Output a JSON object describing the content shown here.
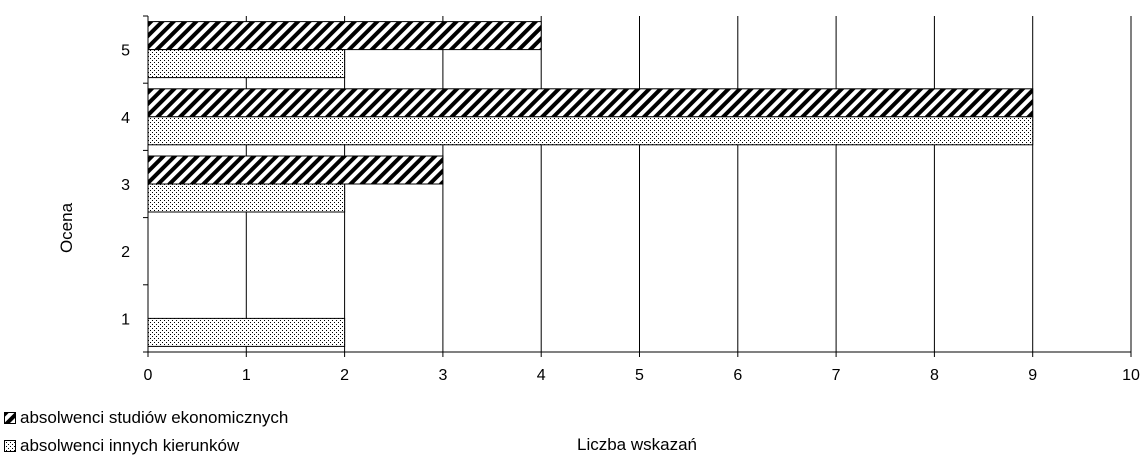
{
  "chart_data": {
    "type": "bar",
    "orientation": "horizontal",
    "categories": [
      "1",
      "2",
      "3",
      "4",
      "5"
    ],
    "series": [
      {
        "name": "absolwenci studiów ekonomicznych",
        "values": [
          0,
          0,
          3,
          9,
          4
        ],
        "pattern": "diagonal-hatch",
        "color": "#000000"
      },
      {
        "name": "absolwenci innych kierunków",
        "values": [
          2,
          0,
          2,
          9,
          2
        ],
        "pattern": "dotted",
        "color": "#000000"
      }
    ],
    "xlabel": "Liczba wskazań",
    "ylabel": "Ocena",
    "xlim": [
      0,
      10
    ],
    "xticks": [
      "0",
      "1",
      "2",
      "3",
      "4",
      "5",
      "6",
      "7",
      "8",
      "9",
      "10"
    ],
    "grid": "vertical",
    "legend_position": "bottom-left"
  }
}
